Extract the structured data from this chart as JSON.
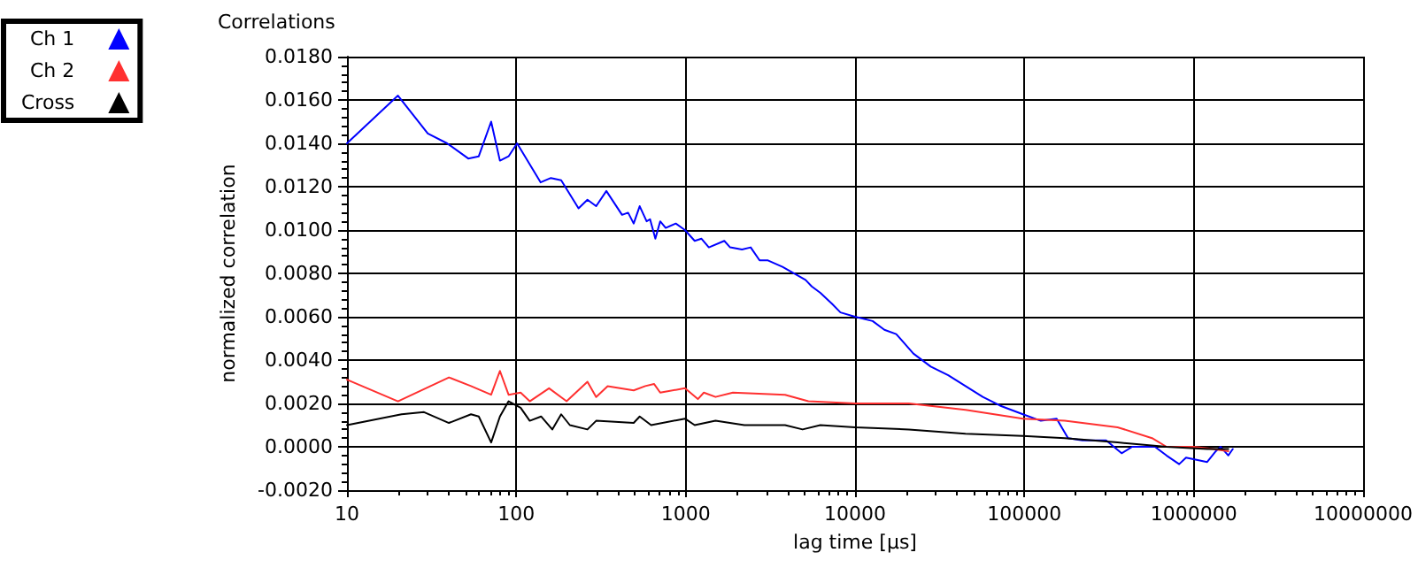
{
  "chart_data": {
    "type": "line",
    "title": "Correlations",
    "xlabel": "lag time [µs]",
    "ylabel": "normalized correlation",
    "log": "x",
    "grid": true,
    "legend": "top left",
    "marker": "none",
    "line_style": "solid",
    "xlim": [
      10,
      10000000
    ],
    "xticks": [
      10,
      100,
      1000,
      10000,
      100000,
      1000000,
      10000000
    ],
    "ylim": [
      -0.002,
      0.018
    ],
    "yticks": [
      {
        "value": -0.002,
        "label": "-0.0020"
      },
      {
        "value": 0,
        "label": "0.0000"
      },
      {
        "value": 0.002,
        "label": "0.0020"
      },
      {
        "value": 0.004,
        "label": "0.0040"
      },
      {
        "value": 0.006,
        "label": "0.0060"
      },
      {
        "value": 0.008,
        "label": "0.0080"
      },
      {
        "value": 0.01,
        "label": "0.0100"
      },
      {
        "value": 0.012,
        "label": "0.0120"
      },
      {
        "value": 0.014,
        "label": "0.0140"
      },
      {
        "value": 0.016,
        "label": "0.0160"
      },
      {
        "value": 0.018,
        "label": "0.0180"
      }
    ],
    "series": [
      {
        "name": "Ch 1",
        "color": "#0000ff",
        "x": [
          10,
          20,
          30,
          39,
          52,
          60,
          71,
          80,
          90,
          101,
          139,
          160,
          184,
          233,
          263,
          296,
          340,
          421,
          457,
          493,
          535,
          588,
          616,
          662,
          707,
          762,
          874,
          990,
          1130,
          1240,
          1370,
          1690,
          1830,
          2150,
          2420,
          2730,
          3060,
          3730,
          5100,
          5550,
          6240,
          7300,
          8200,
          10000,
          12700,
          14900,
          17500,
          22100,
          28000,
          35500,
          44900,
          56800,
          71800,
          98000,
          125000,
          155000,
          181000,
          220000,
          304000,
          375000,
          433000,
          590000,
          690000,
          820000,
          900000,
          1200000,
          1350000,
          1440000,
          1600000,
          1700000
        ],
        "values": [
          0.014,
          0.0162,
          0.01445,
          0.014,
          0.0133,
          0.0134,
          0.015,
          0.0132,
          0.0134,
          0.014,
          0.0122,
          0.0124,
          0.0123,
          0.011,
          0.0114,
          0.0111,
          0.0118,
          0.0107,
          0.0108,
          0.0103,
          0.0111,
          0.0104,
          0.0105,
          0.0096,
          0.0104,
          0.0101,
          0.0103,
          0.01,
          0.0095,
          0.0096,
          0.0092,
          0.0095,
          0.0092,
          0.0091,
          0.0092,
          0.0086,
          0.0086,
          0.0083,
          0.0077,
          0.0074,
          0.0071,
          0.0066,
          0.0062,
          0.006,
          0.0058,
          0.0054,
          0.0052,
          0.0043,
          0.0037,
          0.0033,
          0.0028,
          0.0023,
          0.0019,
          0.0015,
          0.0012,
          0.0013,
          0.0004,
          0.0003,
          0.0003,
          -0.0003,
          0,
          0,
          -0.0004,
          -0.0008,
          -0.0005,
          -0.0007,
          -0.0002,
          0,
          -0.0004,
          -0.0001
        ]
      },
      {
        "name": "Ch 2",
        "color": "#ff3030",
        "x": [
          10,
          20,
          40,
          54,
          71,
          80,
          90,
          106,
          120,
          156,
          198,
          263,
          296,
          346,
          493,
          577,
          650,
          707,
          990,
          1180,
          1280,
          1500,
          1900,
          3860,
          5300,
          10000,
          20800,
          44900,
          98000,
          173000,
          355000,
          567000,
          690000,
          1000000,
          1300000,
          1600000
        ],
        "values": [
          0.0031,
          0.0021,
          0.0032,
          0.0028,
          0.0024,
          0.0035,
          0.0024,
          0.0025,
          0.0021,
          0.0027,
          0.0021,
          0.003,
          0.0023,
          0.0028,
          0.0026,
          0.0028,
          0.0029,
          0.0025,
          0.0027,
          0.0022,
          0.0025,
          0.0023,
          0.0025,
          0.0024,
          0.0021,
          0.002,
          0.002,
          0.0017,
          0.0013,
          0.0012,
          0.0009,
          0.0004,
          0,
          0,
          -0.0001,
          -0.0002
        ]
      },
      {
        "name": "Cross",
        "color": "#000000",
        "x": [
          10,
          21,
          28.5,
          40,
          54,
          60,
          71,
          80,
          90,
          106,
          120,
          140,
          163,
          184,
          207,
          263,
          296,
          493,
          535,
          625,
          990,
          1130,
          1500,
          2220,
          3860,
          4900,
          6240,
          10000,
          20800,
          44900,
          98000,
          173000,
          355000,
          690000,
          1200000,
          1600000
        ],
        "values": [
          0.001,
          0.0015,
          0.0016,
          0.0011,
          0.0015,
          0.0014,
          0.0002,
          0.0014,
          0.0021,
          0.0018,
          0.0012,
          0.0014,
          0.0008,
          0.0015,
          0.001,
          0.0008,
          0.0012,
          0.0011,
          0.0014,
          0.001,
          0.0013,
          0.001,
          0.0012,
          0.001,
          0.001,
          0.0008,
          0.001,
          0.0009,
          0.0008,
          0.0006,
          0.0005,
          0.0004,
          0.0002,
          0,
          -0.0001,
          -0.0001
        ]
      }
    ]
  }
}
